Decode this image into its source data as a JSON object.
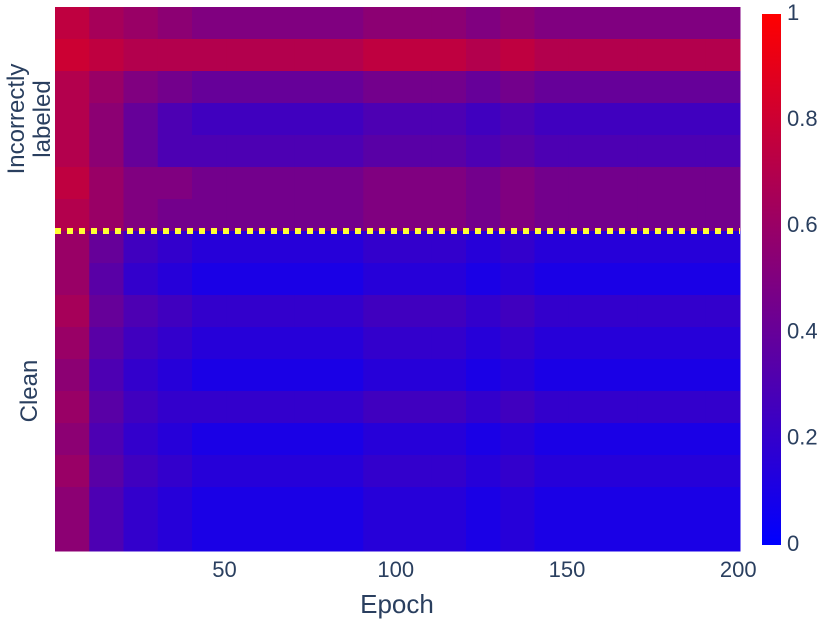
{
  "chart_data": {
    "type": "heatmap",
    "x_label": "Epoch",
    "xbins": [
      0.5,
      10.5,
      20.5,
      30.5,
      40.5,
      50.5,
      60.5,
      70.5,
      80.5,
      90.5,
      100.5,
      110.5,
      120.5,
      130.5,
      140.5,
      150.5,
      160.5,
      170.5,
      180.5,
      190.5,
      200.5
    ],
    "xlim": [
      0.5,
      200.5
    ],
    "xticks": [
      50,
      100,
      150,
      200
    ],
    "colorscale": [
      "#0000ff",
      "#ff0000"
    ],
    "zlim": [
      0,
      1
    ],
    "zticks": [
      0,
      0.2,
      0.4,
      0.6,
      0.8,
      1
    ],
    "divider_color": "#ffff33",
    "groups": [
      {
        "label": "Incorrectly labeled",
        "values": [
          [
            0.75,
            0.65,
            0.6,
            0.55,
            0.5,
            0.5,
            0.5,
            0.5,
            0.5,
            0.55,
            0.55,
            0.55,
            0.5,
            0.55,
            0.5,
            0.5,
            0.5,
            0.5,
            0.5,
            0.5
          ],
          [
            0.8,
            0.75,
            0.7,
            0.7,
            0.7,
            0.7,
            0.7,
            0.7,
            0.7,
            0.75,
            0.75,
            0.75,
            0.7,
            0.75,
            0.7,
            0.7,
            0.7,
            0.7,
            0.7,
            0.7
          ],
          [
            0.7,
            0.6,
            0.5,
            0.45,
            0.4,
            0.4,
            0.4,
            0.4,
            0.4,
            0.45,
            0.45,
            0.45,
            0.4,
            0.45,
            0.4,
            0.4,
            0.4,
            0.4,
            0.4,
            0.4
          ],
          [
            0.7,
            0.55,
            0.4,
            0.3,
            0.25,
            0.25,
            0.25,
            0.25,
            0.25,
            0.3,
            0.3,
            0.3,
            0.25,
            0.3,
            0.25,
            0.25,
            0.25,
            0.25,
            0.25,
            0.25
          ],
          [
            0.7,
            0.55,
            0.4,
            0.3,
            0.3,
            0.3,
            0.3,
            0.3,
            0.3,
            0.35,
            0.35,
            0.35,
            0.3,
            0.35,
            0.3,
            0.3,
            0.3,
            0.3,
            0.3,
            0.3
          ],
          [
            0.75,
            0.6,
            0.5,
            0.5,
            0.45,
            0.45,
            0.45,
            0.45,
            0.45,
            0.5,
            0.5,
            0.5,
            0.45,
            0.5,
            0.45,
            0.45,
            0.45,
            0.45,
            0.45,
            0.45
          ],
          [
            0.7,
            0.6,
            0.5,
            0.45,
            0.45,
            0.45,
            0.45,
            0.45,
            0.45,
            0.5,
            0.5,
            0.5,
            0.45,
            0.5,
            0.45,
            0.45,
            0.45,
            0.45,
            0.45,
            0.45
          ]
        ]
      },
      {
        "label": "Clean",
        "values": [
          [
            0.6,
            0.4,
            0.25,
            0.2,
            0.15,
            0.15,
            0.15,
            0.15,
            0.15,
            0.2,
            0.2,
            0.2,
            0.15,
            0.2,
            0.15,
            0.15,
            0.15,
            0.15,
            0.15,
            0.15
          ],
          [
            0.6,
            0.35,
            0.2,
            0.15,
            0.1,
            0.1,
            0.1,
            0.1,
            0.1,
            0.15,
            0.15,
            0.15,
            0.1,
            0.15,
            0.1,
            0.1,
            0.1,
            0.1,
            0.1,
            0.1
          ],
          [
            0.65,
            0.4,
            0.3,
            0.25,
            0.2,
            0.2,
            0.2,
            0.2,
            0.2,
            0.25,
            0.25,
            0.25,
            0.2,
            0.25,
            0.2,
            0.2,
            0.2,
            0.2,
            0.2,
            0.2
          ],
          [
            0.6,
            0.35,
            0.25,
            0.2,
            0.15,
            0.15,
            0.15,
            0.15,
            0.15,
            0.2,
            0.2,
            0.2,
            0.15,
            0.2,
            0.15,
            0.15,
            0.15,
            0.15,
            0.15,
            0.15
          ],
          [
            0.55,
            0.3,
            0.2,
            0.15,
            0.1,
            0.1,
            0.1,
            0.1,
            0.1,
            0.15,
            0.15,
            0.15,
            0.1,
            0.15,
            0.1,
            0.1,
            0.1,
            0.1,
            0.1,
            0.1
          ],
          [
            0.6,
            0.35,
            0.25,
            0.2,
            0.2,
            0.2,
            0.2,
            0.2,
            0.2,
            0.25,
            0.25,
            0.25,
            0.2,
            0.25,
            0.2,
            0.2,
            0.2,
            0.2,
            0.2,
            0.2
          ],
          [
            0.55,
            0.3,
            0.2,
            0.15,
            0.1,
            0.1,
            0.1,
            0.1,
            0.1,
            0.15,
            0.15,
            0.15,
            0.1,
            0.15,
            0.1,
            0.1,
            0.1,
            0.1,
            0.1,
            0.1
          ],
          [
            0.6,
            0.35,
            0.25,
            0.2,
            0.15,
            0.15,
            0.15,
            0.15,
            0.15,
            0.2,
            0.2,
            0.2,
            0.15,
            0.2,
            0.15,
            0.15,
            0.15,
            0.15,
            0.15,
            0.15
          ],
          [
            0.55,
            0.3,
            0.2,
            0.15,
            0.1,
            0.1,
            0.1,
            0.1,
            0.1,
            0.15,
            0.15,
            0.15,
            0.1,
            0.15,
            0.1,
            0.1,
            0.1,
            0.1,
            0.1,
            0.1
          ],
          [
            0.55,
            0.3,
            0.2,
            0.15,
            0.1,
            0.1,
            0.1,
            0.1,
            0.1,
            0.15,
            0.15,
            0.15,
            0.1,
            0.15,
            0.1,
            0.1,
            0.1,
            0.1,
            0.1,
            0.1
          ]
        ]
      }
    ]
  }
}
